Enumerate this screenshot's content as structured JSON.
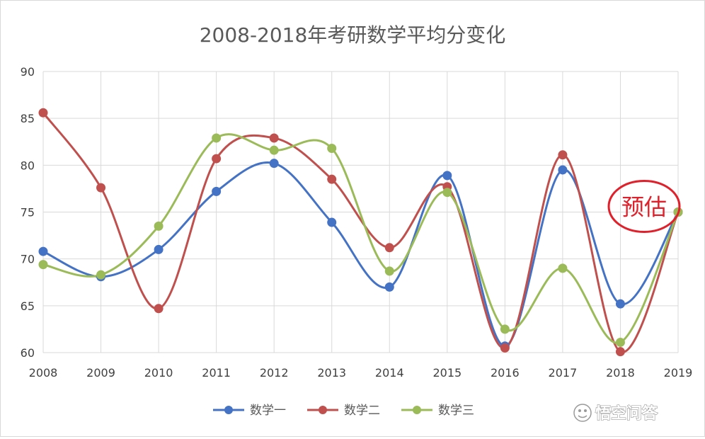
{
  "chart_data": {
    "type": "line",
    "title": "2008-2018年考研数学平均分变化",
    "categories": [
      "2008",
      "2009",
      "2010",
      "2011",
      "2012",
      "2013",
      "2014",
      "2015",
      "2016",
      "2017",
      "2018",
      "2019"
    ],
    "ylim": [
      60,
      90
    ],
    "yticks": [
      "60",
      "65",
      "70",
      "75",
      "80",
      "85",
      "90"
    ],
    "grid": true,
    "smooth": true,
    "legend_position": "bottom",
    "series": [
      {
        "name": "数学一",
        "color": "#4472c4",
        "values": [
          70.8,
          68.1,
          71.0,
          77.2,
          80.2,
          73.9,
          67.0,
          78.9,
          60.7,
          79.5,
          65.2,
          75.0
        ]
      },
      {
        "name": "数学二",
        "color": "#c0504d",
        "values": [
          85.6,
          77.6,
          64.7,
          80.7,
          82.9,
          78.5,
          71.2,
          77.7,
          60.5,
          81.1,
          60.1,
          75.0
        ]
      },
      {
        "name": "数学三",
        "color": "#9bbb59",
        "values": [
          69.4,
          68.3,
          73.5,
          82.9,
          81.6,
          81.8,
          68.7,
          77.1,
          62.5,
          69.0,
          61.1,
          75.0
        ]
      }
    ],
    "annotation": {
      "text": "预估",
      "color": "#e0202a",
      "category": "2019"
    }
  },
  "watermark": {
    "text": "悟空问答"
  }
}
